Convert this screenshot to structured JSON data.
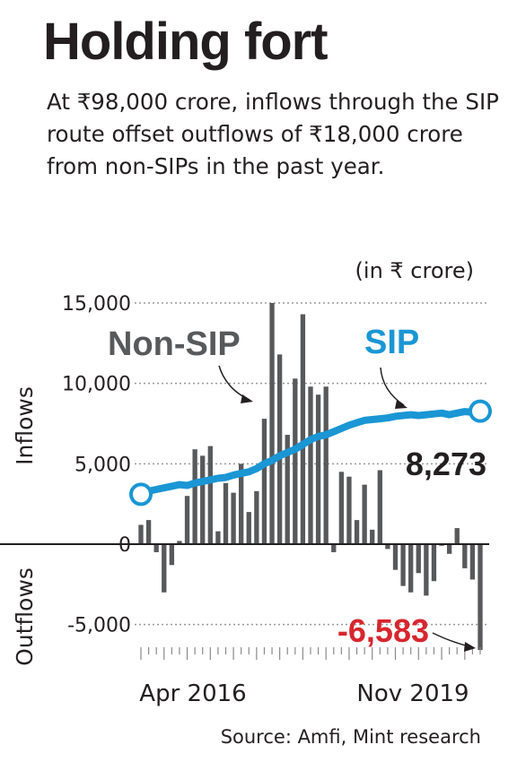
{
  "title": "Holding fort",
  "subtitle": "At ₹98,000 crore, inflows through the SIP route offset outflows of ₹18,000 crore from non-SIPs in the past year.",
  "unit_label": "(in ₹ crore)",
  "source": "Source: Amfi, Mint research",
  "colors": {
    "sip": "#1a96d4",
    "non_sip": "#58595b",
    "negative_label": "#d7262e",
    "text": "#231f20"
  },
  "chart_data": {
    "type": "bar",
    "ylim": [
      -6583,
      15000
    ],
    "y_ticks": [
      {
        "value": 15000,
        "label": "15,000"
      },
      {
        "value": 10000,
        "label": "10,000"
      },
      {
        "value": 5000,
        "label": "5,000"
      },
      {
        "value": 0,
        "label": "0"
      },
      {
        "value": -5000,
        "label": "-5,000"
      }
    ],
    "x_labels": {
      "start": "Apr 2016",
      "end": "Nov 2019"
    },
    "inflows_label": "Inflows",
    "outflows_label": "Outflows",
    "series": [
      {
        "name": "Non-SIP",
        "type": "bar",
        "values": [
          1200,
          1500,
          -500,
          -3000,
          -1300,
          200,
          3000,
          5900,
          5500,
          6100,
          800,
          3800,
          3200,
          5000,
          2000,
          3300,
          7800,
          15000,
          11800,
          6800,
          10300,
          14300,
          9800,
          9300,
          9800,
          -500,
          4500,
          4200,
          1500,
          3700,
          900,
          4600,
          -300,
          -1600,
          -2600,
          -3000,
          -1800,
          -3200,
          -2300,
          -100,
          -600,
          1000,
          -1500,
          -2200,
          -6583
        ]
      },
      {
        "name": "SIP",
        "type": "line",
        "values": [
          3100,
          3300,
          3400,
          3500,
          3600,
          3700,
          3650,
          3800,
          3900,
          4000,
          4100,
          4150,
          4300,
          4400,
          4500,
          4700,
          5000,
          5200,
          5500,
          5700,
          5900,
          6200,
          6500,
          6700,
          6800,
          7000,
          7200,
          7400,
          7550,
          7700,
          7750,
          7800,
          7850,
          7950,
          8000,
          8050,
          8000,
          8050,
          8100,
          8150,
          8050,
          8150,
          8250,
          8200,
          8273
        ]
      }
    ],
    "annotations": {
      "sip_last": "8,273",
      "non_sip_min": "-6,583"
    }
  }
}
